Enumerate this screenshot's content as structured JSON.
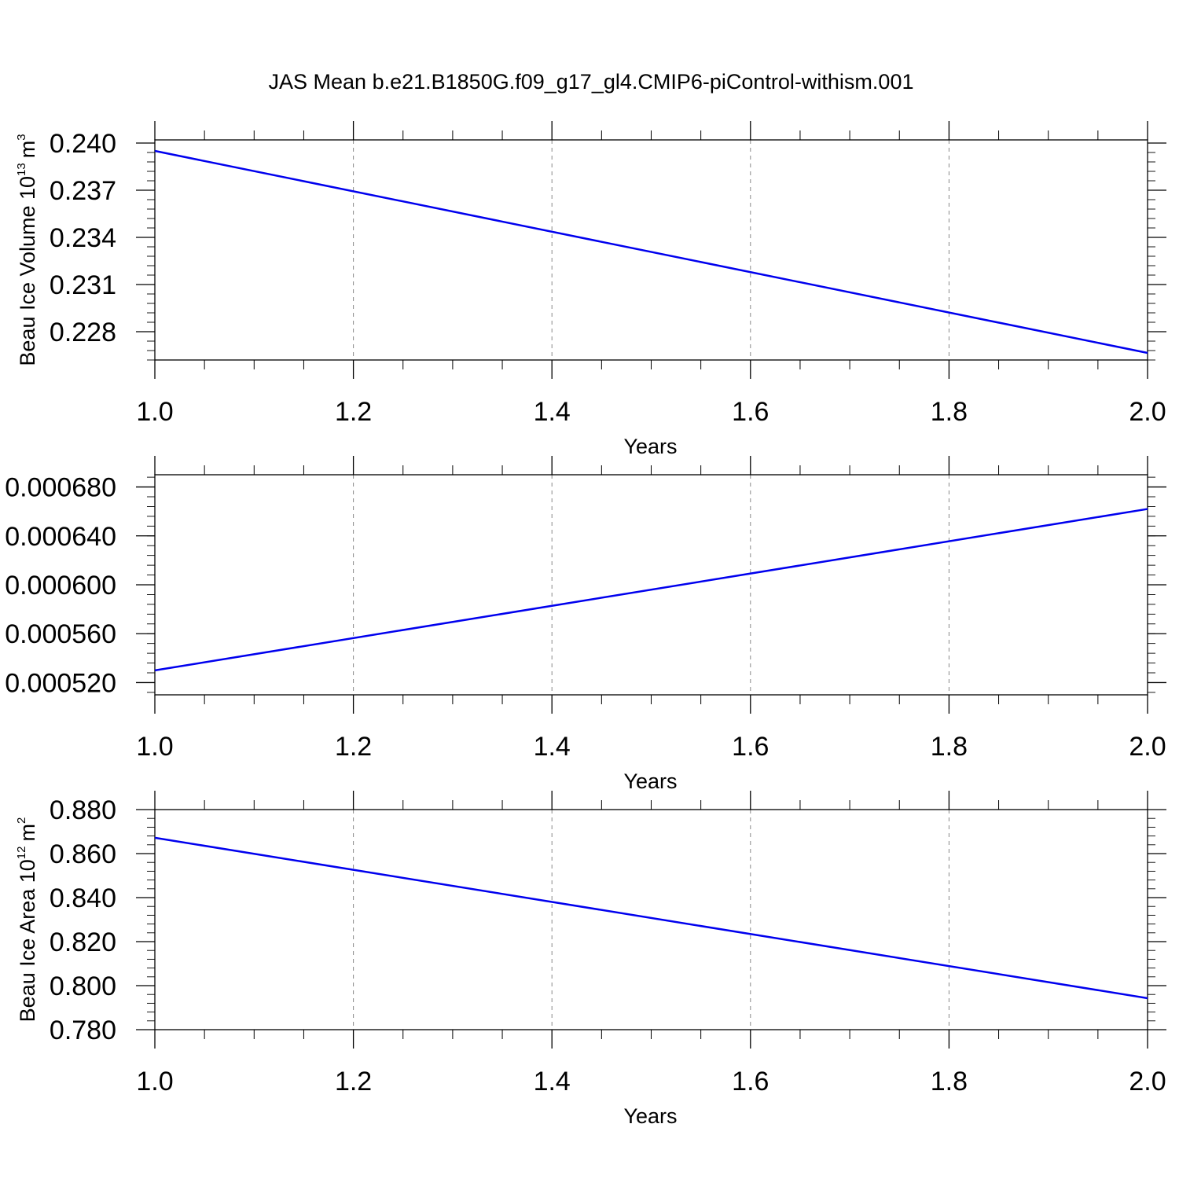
{
  "figure": {
    "title": "JAS Mean b.e21.B1850G.f09_g17_gl4.CMIP6-piControl-withism.001"
  },
  "chart_data": [
    {
      "type": "line",
      "xlabel": "Years",
      "ylabel": {
        "main": "Beau Ice Volume 10",
        "exponent": "13",
        "unit": "m",
        "unit_exponent": "3"
      },
      "xlim": [
        1.0,
        2.0
      ],
      "ylim": [
        0.2262,
        0.2402
      ],
      "x_ticks": [
        "1.0",
        "1.2",
        "1.4",
        "1.6",
        "1.8",
        "2.0"
      ],
      "x_tick_values": [
        1.0,
        1.2,
        1.4,
        1.6,
        1.8,
        2.0
      ],
      "y_ticks": [
        "0.240",
        "0.237",
        "0.234",
        "0.231",
        "0.228"
      ],
      "y_tick_values": [
        0.24,
        0.237,
        0.234,
        0.231,
        0.228
      ],
      "y_minor_step": 0.0006,
      "x_minor_step": 0.05,
      "grid": "dashed vertical lines at major x ticks",
      "line_color": "#0000ee",
      "series": [
        {
          "x": [
            1.0,
            2.0
          ],
          "y": [
            0.2395,
            0.22665
          ]
        }
      ]
    },
    {
      "type": "line",
      "xlabel": "Years",
      "ylabel": null,
      "xlim": [
        1.0,
        2.0
      ],
      "ylim": [
        0.00051,
        0.00069
      ],
      "x_ticks": [
        "1.0",
        "1.2",
        "1.4",
        "1.6",
        "1.8",
        "2.0"
      ],
      "x_tick_values": [
        1.0,
        1.2,
        1.4,
        1.6,
        1.8,
        2.0
      ],
      "y_ticks": [
        "0.000680",
        "0.000640",
        "0.000600",
        "0.000560",
        "0.000520"
      ],
      "y_tick_values": [
        0.00068,
        0.00064,
        0.0006,
        0.00056,
        0.00052
      ],
      "y_minor_step": 8e-06,
      "x_minor_step": 0.05,
      "grid": "dashed vertical lines at major x ticks",
      "line_color": "#0000ee",
      "series": [
        {
          "x": [
            1.0,
            2.0
          ],
          "y": [
            0.00053,
            0.000662
          ]
        }
      ]
    },
    {
      "type": "line",
      "xlabel": "Years",
      "ylabel": {
        "main": "Beau Ice Area 10",
        "exponent": "12",
        "unit": "m",
        "unit_exponent": "2"
      },
      "xlim": [
        1.0,
        2.0
      ],
      "ylim": [
        0.78,
        0.88
      ],
      "x_ticks": [
        "1.0",
        "1.2",
        "1.4",
        "1.6",
        "1.8",
        "2.0"
      ],
      "x_tick_values": [
        1.0,
        1.2,
        1.4,
        1.6,
        1.8,
        2.0
      ],
      "y_ticks": [
        "0.880",
        "0.860",
        "0.840",
        "0.820",
        "0.800",
        "0.780"
      ],
      "y_tick_values": [
        0.88,
        0.86,
        0.84,
        0.82,
        0.8,
        0.78
      ],
      "y_minor_step": 0.004,
      "x_minor_step": 0.05,
      "grid": "dashed vertical lines at major x ticks",
      "line_color": "#0000ee",
      "series": [
        {
          "x": [
            1.0,
            2.0
          ],
          "y": [
            0.8672,
            0.7943
          ]
        }
      ]
    }
  ]
}
